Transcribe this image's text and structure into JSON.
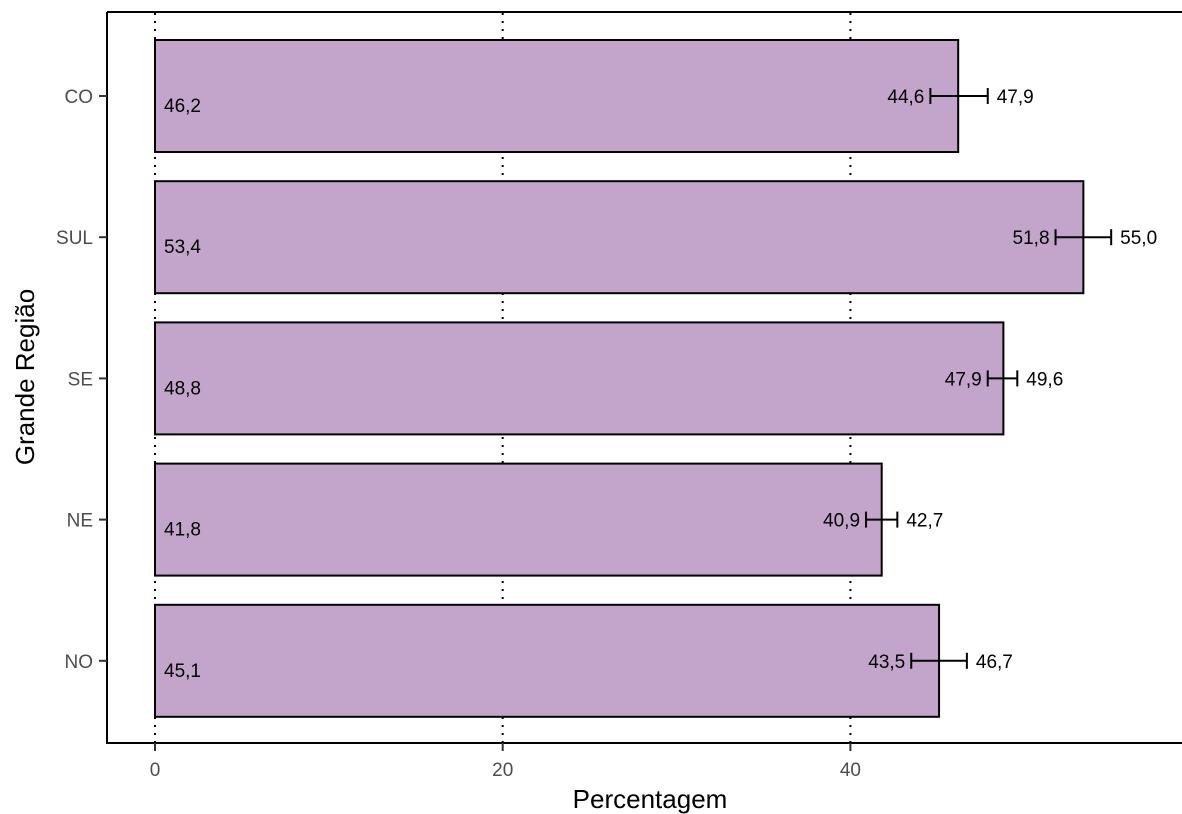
{
  "chart_data": {
    "type": "bar",
    "orientation": "horizontal",
    "title": "",
    "xlabel": "Percentagem",
    "ylabel": "Grande Região",
    "categories": [
      "CO",
      "SUL",
      "SE",
      "NE",
      "NO"
    ],
    "values": [
      46.2,
      53.4,
      48.8,
      41.8,
      45.1
    ],
    "value_labels": [
      "46,2",
      "53,4",
      "48,8",
      "41,8",
      "45,1"
    ],
    "ci_low": [
      44.6,
      51.8,
      47.9,
      40.9,
      43.5
    ],
    "ci_low_labels": [
      "44,6",
      "51,8",
      "47,9",
      "40,9",
      "43,5"
    ],
    "ci_high": [
      47.9,
      55.0,
      49.6,
      42.7,
      46.7
    ],
    "ci_high_labels": [
      "47,9",
      "55,0",
      "49,6",
      "42,7",
      "46,7"
    ],
    "x_ticks": [
      0,
      20,
      40
    ],
    "x_tick_labels": [
      "0",
      "20",
      "40"
    ],
    "xlim": [
      -2.8,
      59.1
    ],
    "grid": "vertical dotted",
    "legend": "none",
    "bar_color": "#c3a5cb",
    "bar_edge_color": "#000000"
  }
}
